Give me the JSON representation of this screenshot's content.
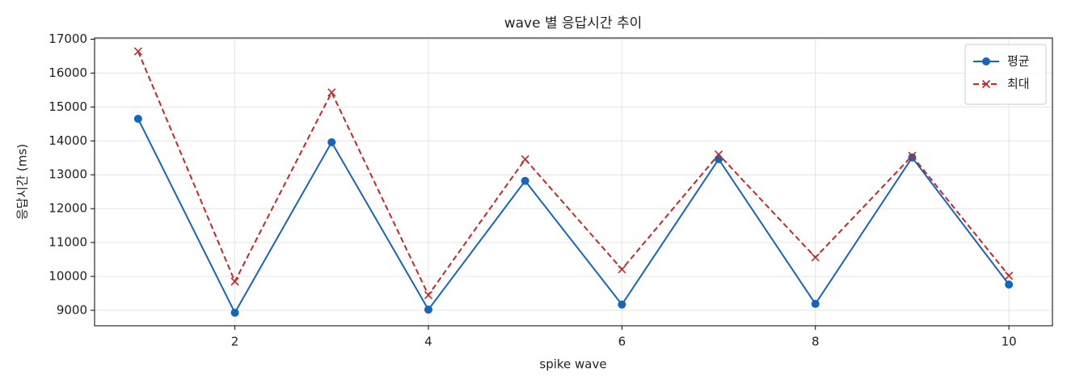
{
  "chart_data": {
    "type": "line",
    "title": "wave 별 응답시간 추이",
    "xlabel": "spike wave",
    "ylabel": "응답시간 (ms)",
    "x": [
      1,
      2,
      3,
      4,
      5,
      6,
      7,
      8,
      9,
      10
    ],
    "series": [
      {
        "name": "평균",
        "color": "#1565c0",
        "marker": "o",
        "linestyle": "solid",
        "values": [
          14650,
          8930,
          13960,
          9020,
          12820,
          9170,
          13460,
          9190,
          13510,
          9760
        ]
      },
      {
        "name": "최대",
        "color": "#c62828",
        "marker": "x",
        "linestyle": "dashed",
        "values": [
          16640,
          9850,
          15430,
          9450,
          13460,
          10210,
          13600,
          10560,
          13560,
          10020
        ]
      }
    ],
    "xlim": [
      0.55,
      10.45
    ],
    "ylim": [
      8544,
      17036
    ],
    "xticks": [
      2,
      4,
      6,
      8,
      10
    ],
    "yticks": [
      9000,
      10000,
      11000,
      12000,
      13000,
      14000,
      15000,
      16000,
      17000
    ],
    "grid": true,
    "legend": "upper right"
  }
}
